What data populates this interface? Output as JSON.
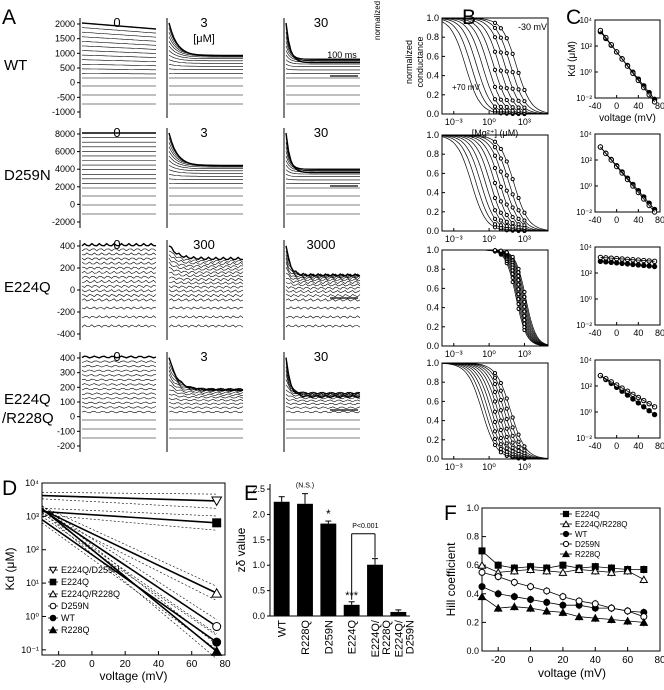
{
  "panels": {
    "a": {
      "letter": "A",
      "rows": [
        {
          "label": "WT",
          "concs": [
            "0",
            "3",
            "30"
          ],
          "unit": "[μM]",
          "ticks": [
            "2000",
            "1500",
            "1000",
            "500",
            "0",
            "-500",
            "-1000"
          ],
          "show_scalebar_text": true,
          "scalebar": "100 ms"
        },
        {
          "label": "D259N",
          "concs": [
            "0",
            "3",
            "30"
          ],
          "ticks": [
            "8000",
            "6000",
            "4000",
            "2000",
            "0",
            "-2000"
          ]
        },
        {
          "label": "E224Q",
          "concs": [
            "0",
            "300",
            "3000"
          ],
          "ticks": [
            "400",
            "200",
            "0",
            "-200",
            "-400"
          ]
        },
        {
          "label": "E224Q",
          "label2": "/R228Q",
          "concs": [
            "0",
            "3",
            "30"
          ],
          "ticks": [
            "400",
            "300",
            "200",
            "100",
            "0",
            "-100",
            "-200"
          ]
        }
      ]
    },
    "b": {
      "letter": "B",
      "ylabel1": "normalized",
      "ylabel2": "conductance",
      "xlabel": "[Mg²⁺] (μM)",
      "yticks": [
        "1.0",
        "0.8",
        "0.6",
        "0.4",
        "0.2",
        "0.0"
      ],
      "xticks": [
        "10⁻³",
        "10⁰",
        "10³"
      ],
      "annot_neg": "-30 mV",
      "annot_pos": "+70 mV"
    },
    "c": {
      "letter": "C",
      "ylabel": "Kd (μM)",
      "xlabel": "voltage (mV)",
      "yticks": [
        "10⁴",
        "10²",
        "10⁰",
        "10⁻²"
      ],
      "xticks": [
        "-40",
        "0",
        "40",
        "80"
      ]
    },
    "d": {
      "letter": "D",
      "ylabel": "Kd (μM)",
      "xlabel": "voltage (mV)",
      "yticks": [
        "10⁴",
        "10³",
        "10²",
        "10¹",
        "10⁰",
        "10⁻¹"
      ],
      "xticks": [
        "-20",
        "0",
        "20",
        "40",
        "60",
        "80"
      ],
      "legend": [
        "E224Q/D259N",
        "E224Q",
        "E224Q/R228Q",
        "D259N",
        "WT",
        "R228Q"
      ]
    },
    "e": {
      "letter": "E",
      "ylabel": "zδ value",
      "yticks": [
        "2.5",
        "2.0",
        "1.5",
        "1.0",
        "0.5",
        "0.0"
      ],
      "ns": "(N.S.)",
      "star1": "*",
      "star3": "***",
      "pval": "P<0.001"
    },
    "f": {
      "letter": "F",
      "ylabel": "Hill coefficient",
      "xlabel": "voltage (mV)",
      "yticks": [
        "1.0",
        "0.8",
        "0.6",
        "0.4",
        "0.2",
        "0.0"
      ],
      "xticks": [
        "-20",
        "0",
        "20",
        "40",
        "60",
        "80"
      ],
      "legend": [
        "E224Q",
        "E224Q/R228Q",
        "WT",
        "D259N",
        "R228Q"
      ]
    }
  },
  "chart_data": [
    {
      "type": "line",
      "title": "D",
      "xlabel": "voltage (mV)",
      "ylabel": "Kd (μM)",
      "yscale": "log",
      "xlim": [
        -30,
        80
      ],
      "ylim": [
        0.07,
        10000
      ],
      "x": [
        -30,
        75
      ],
      "series": [
        {
          "name": "E224Q/D259N",
          "values": [
            4200,
            2900
          ],
          "marker": "open-triangle-down"
        },
        {
          "name": "E224Q",
          "values": [
            1400,
            640
          ],
          "marker": "filled-square"
        },
        {
          "name": "E224Q/R228Q",
          "values": [
            1600,
            5
          ],
          "marker": "open-triangle"
        },
        {
          "name": "D259N",
          "values": [
            1600,
            0.5
          ],
          "marker": "open-circle"
        },
        {
          "name": "WT",
          "values": [
            800,
            0.17
          ],
          "marker": "filled-circle"
        },
        {
          "name": "R228Q",
          "values": [
            1700,
            0.09
          ],
          "marker": "filled-triangle"
        }
      ]
    },
    {
      "type": "bar",
      "title": "E",
      "ylabel": "zδ value",
      "ylim": [
        0,
        2.6
      ],
      "categories": [
        "WT",
        "R228Q",
        "D259N",
        "E224Q",
        "E224Q/\nR228Q",
        "E224Q/\nD259N"
      ],
      "values": [
        2.25,
        2.21,
        1.82,
        0.22,
        1.01,
        0.08
      ],
      "errors": [
        0.1,
        0.2,
        0.05,
        0.06,
        0.12,
        0.04
      ]
    },
    {
      "type": "line",
      "title": "F",
      "xlabel": "voltage (mV)",
      "ylabel": "Hill coefficient",
      "xlim": [
        -30,
        80
      ],
      "ylim": [
        0,
        1.0
      ],
      "x": [
        -30,
        -20,
        -10,
        0,
        10,
        20,
        30,
        40,
        50,
        60,
        70
      ],
      "series": [
        {
          "name": "E224Q",
          "values": [
            0.7,
            0.6,
            0.58,
            0.59,
            0.58,
            0.6,
            0.58,
            0.59,
            0.58,
            0.57,
            0.57
          ],
          "marker": "filled-square"
        },
        {
          "name": "E224Q/R228Q",
          "values": [
            0.6,
            0.55,
            0.56,
            0.57,
            0.56,
            0.55,
            0.57,
            0.56,
            0.55,
            0.56,
            0.5
          ],
          "marker": "open-triangle"
        },
        {
          "name": "WT",
          "values": [
            0.45,
            0.4,
            0.38,
            0.36,
            0.34,
            0.32,
            0.32,
            0.3,
            0.3,
            0.28,
            0.27
          ],
          "marker": "filled-circle"
        },
        {
          "name": "D259N",
          "values": [
            0.55,
            0.52,
            0.48,
            0.45,
            0.42,
            0.38,
            0.35,
            0.33,
            0.3,
            0.28,
            0.24
          ],
          "marker": "open-circle"
        },
        {
          "name": "R228Q",
          "values": [
            0.38,
            0.3,
            0.31,
            0.3,
            0.28,
            0.27,
            0.24,
            0.23,
            0.22,
            0.21,
            0.2
          ],
          "marker": "filled-triangle"
        }
      ]
    }
  ]
}
